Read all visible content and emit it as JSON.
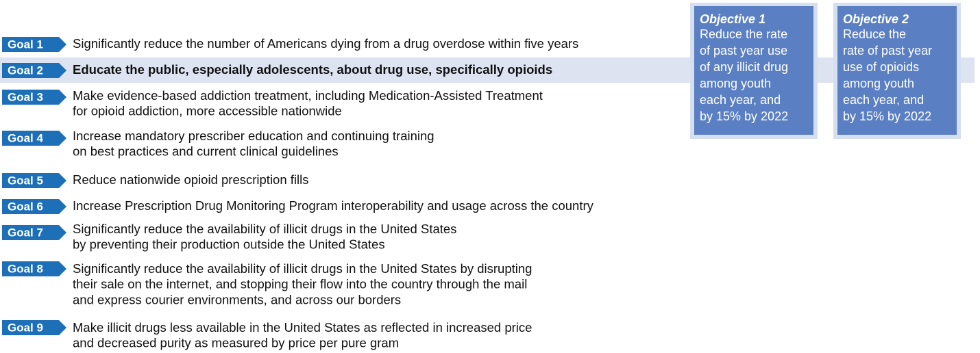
{
  "goals": [
    {
      "label": "Goal 1",
      "lines": [
        "Significantly reduce the number of Americans dying from a drug overdose within five years"
      ]
    },
    {
      "label": "Goal 2",
      "lines": [
        "Educate the public, especially adolescents, about drug use, specifically opioids"
      ]
    },
    {
      "label": "Goal 3",
      "lines": [
        "Make evidence-based addiction treatment, including Medication-Assisted Treatment",
        "for opioid addiction, more accessible nationwide"
      ]
    },
    {
      "label": "Goal 4",
      "lines": [
        "Increase mandatory prescriber education and continuing training",
        "on best practices and current clinical guidelines"
      ]
    },
    {
      "label": "Goal 5",
      "lines": [
        "Reduce nationwide opioid prescription fills"
      ]
    },
    {
      "label": "Goal 6",
      "lines": [
        "Increase Prescription Drug Monitoring Program interoperability and usage across the country"
      ]
    },
    {
      "label": "Goal 7",
      "lines": [
        "Significantly reduce the availability of illicit drugs in the United States",
        "by preventing their production outside the United States"
      ]
    },
    {
      "label": "Goal 8",
      "lines": [
        "Significantly reduce the availability of illicit drugs in the United States by disrupting",
        "their sale on the internet, and stopping their flow into the country through the mail",
        "and express courier environments, and across our borders"
      ]
    },
    {
      "label": "Goal 9",
      "lines": [
        "Make illicit drugs less available in the United States as reflected in increased price",
        "and decreased purity as measured by price per pure gram"
      ]
    }
  ],
  "objectives": [
    {
      "title": "Objective 1",
      "lines": [
        "Reduce the rate",
        "of past year use",
        "of any illicit drug",
        "among youth",
        "each year, and",
        "by 15% by 2022"
      ]
    },
    {
      "title": "Objective 2",
      "lines": [
        "Reduce the",
        "rate of past year",
        "use of opioids",
        "among youth",
        "each year, and",
        "by 15% by 2022"
      ]
    }
  ]
}
